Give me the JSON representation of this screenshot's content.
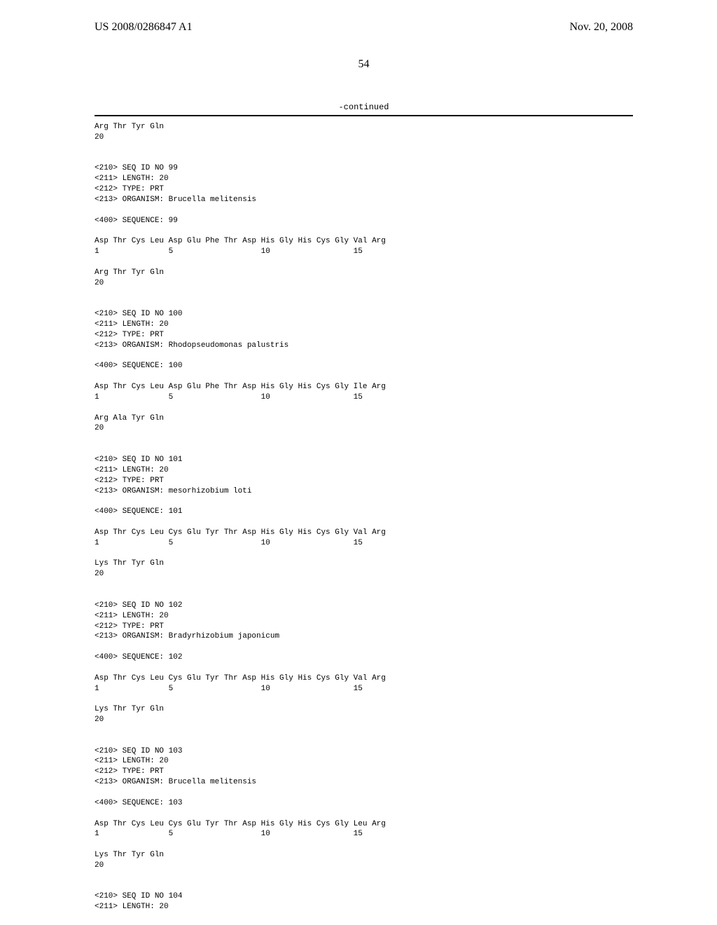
{
  "header": {
    "pub_number": "US 2008/0286847 A1",
    "pub_date": "Nov. 20, 2008"
  },
  "page_number": "54",
  "continued_label": "-continued",
  "sequences": [
    {
      "tail_line1": "Arg Thr Tyr Gln",
      "tail_line2": "20"
    },
    {
      "seq_id": "<210> SEQ ID NO 99",
      "length": "<211> LENGTH: 20",
      "type": "<212> TYPE: PRT",
      "organism": "<213> ORGANISM: Brucella melitensis",
      "seq_header": "<400> SEQUENCE: 99",
      "aa_line": "Asp Thr Cys Leu Asp Glu Phe Thr Asp His Gly His Cys Gly Val Arg",
      "num_line": "1               5                   10                  15",
      "tail_line1": "Arg Thr Tyr Gln",
      "tail_line2": "20"
    },
    {
      "seq_id": "<210> SEQ ID NO 100",
      "length": "<211> LENGTH: 20",
      "type": "<212> TYPE: PRT",
      "organism": "<213> ORGANISM: Rhodopseudomonas palustris",
      "seq_header": "<400> SEQUENCE: 100",
      "aa_line": "Asp Thr Cys Leu Asp Glu Phe Thr Asp His Gly His Cys Gly Ile Arg",
      "num_line": "1               5                   10                  15",
      "tail_line1": "Arg Ala Tyr Gln",
      "tail_line2": "20"
    },
    {
      "seq_id": "<210> SEQ ID NO 101",
      "length": "<211> LENGTH: 20",
      "type": "<212> TYPE: PRT",
      "organism": "<213> ORGANISM: mesorhizobium loti",
      "seq_header": "<400> SEQUENCE: 101",
      "aa_line": "Asp Thr Cys Leu Cys Glu Tyr Thr Asp His Gly His Cys Gly Val Arg",
      "num_line": "1               5                   10                  15",
      "tail_line1": "Lys Thr Tyr Gln",
      "tail_line2": "20"
    },
    {
      "seq_id": "<210> SEQ ID NO 102",
      "length": "<211> LENGTH: 20",
      "type": "<212> TYPE: PRT",
      "organism": "<213> ORGANISM: Bradyrhizobium japonicum",
      "seq_header": "<400> SEQUENCE: 102",
      "aa_line": "Asp Thr Cys Leu Cys Glu Tyr Thr Asp His Gly His Cys Gly Val Arg",
      "num_line": "1               5                   10                  15",
      "tail_line1": "Lys Thr Tyr Gln",
      "tail_line2": "20"
    },
    {
      "seq_id": "<210> SEQ ID NO 103",
      "length": "<211> LENGTH: 20",
      "type": "<212> TYPE: PRT",
      "organism": "<213> ORGANISM: Brucella melitensis",
      "seq_header": "<400> SEQUENCE: 103",
      "aa_line": "Asp Thr Cys Leu Cys Glu Tyr Thr Asp His Gly His Cys Gly Leu Arg",
      "num_line": "1               5                   10                  15",
      "tail_line1": "Lys Thr Tyr Gln",
      "tail_line2": "20"
    },
    {
      "seq_id": "<210> SEQ ID NO 104",
      "length": "<211> LENGTH: 20"
    }
  ]
}
